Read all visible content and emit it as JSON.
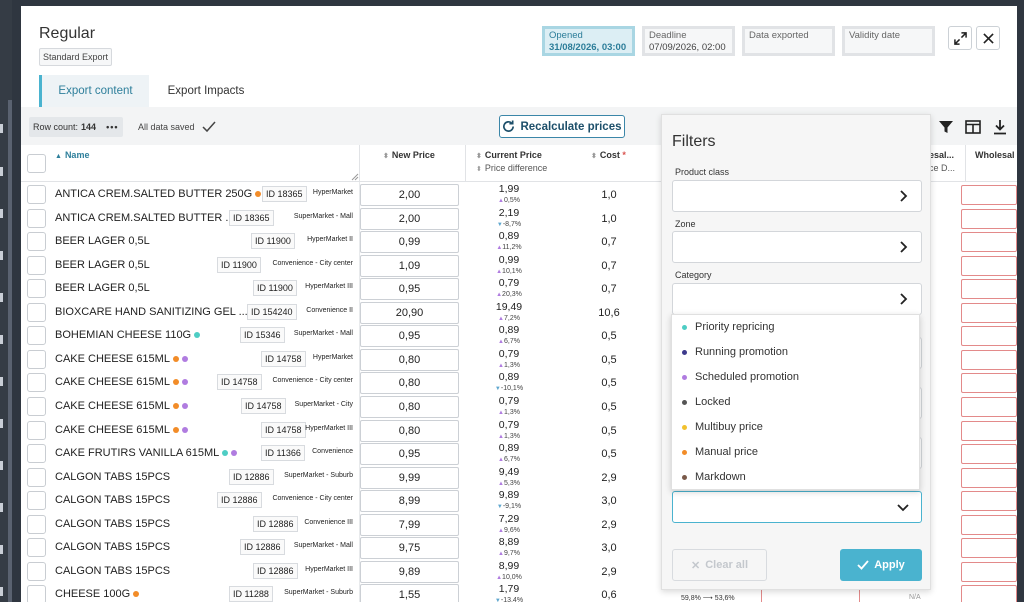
{
  "header": {
    "title": "Regular",
    "subtitle_badge": "Standard Export",
    "status": [
      {
        "label": "Opened",
        "value": "31/08/2026, 03:00",
        "active": true
      },
      {
        "label": "Deadline",
        "value": "07/09/2026, 02:00",
        "active": false
      },
      {
        "label": "Data exported",
        "value": "",
        "active": false
      },
      {
        "label": "Validity date",
        "value": "",
        "active": false
      }
    ],
    "icons": {
      "expand": "expand-icon",
      "close": "close-icon"
    }
  },
  "tabs": [
    {
      "label": "Export content",
      "active": true
    },
    {
      "label": "Export Impacts",
      "active": false
    }
  ],
  "toolbar": {
    "row_count_label": "Row count:",
    "row_count_value": "144",
    "more": "•••",
    "saved_text": "All data saved",
    "recalc_label": "Recalculate prices"
  },
  "columns": {
    "name": "Name",
    "new_price": "New Price",
    "current_price": "Current Price",
    "price_difference": "Price difference",
    "cost": "Cost",
    "cost_required": "*",
    "wholesale_cut": "esal...",
    "wholesale": "Wholesal",
    "price_d_cut": "ce D..."
  },
  "rows": [
    {
      "name": "ANTICA CREM.SALTED BUTTER 250G",
      "dots": [
        "orange"
      ],
      "id": "ID 18365",
      "zone": "HyperMarket",
      "new_price": "2,00",
      "current": "1,99",
      "diff": "0,5%",
      "dir": "up",
      "cost": "1,0"
    },
    {
      "name": "ANTICA CREM.SALTED BUTTER ...",
      "dots": [
        "orange"
      ],
      "id": "ID 18365",
      "zone": "SuperMarket - Mall",
      "new_price": "2,00",
      "current": "2,19",
      "diff": "-8,7%",
      "dir": "down",
      "cost": "1,0"
    },
    {
      "name": "BEER LAGER 0,5L",
      "dots": [],
      "id": "ID 11900",
      "zone": "HyperMarket II",
      "new_price": "0,99",
      "current": "0,89",
      "diff": "11,2%",
      "dir": "up",
      "cost": "0,7"
    },
    {
      "name": "BEER LAGER 0,5L",
      "dots": [],
      "id": "ID 11900",
      "zone": "Convenience - City center",
      "new_price": "1,09",
      "current": "0,99",
      "diff": "10,1%",
      "dir": "up",
      "cost": "0,7"
    },
    {
      "name": "BEER LAGER 0,5L",
      "dots": [],
      "id": "ID 11900",
      "zone": "HyperMarket III",
      "new_price": "0,95",
      "current": "0,79",
      "diff": "20,3%",
      "dir": "up",
      "cost": "0,7"
    },
    {
      "name": "BIOXCARE HAND SANITIZING GEL ...",
      "dots": [],
      "id": "ID 154240",
      "zone": "Convenience II",
      "new_price": "20,90",
      "current": "19,49",
      "diff": "7,2%",
      "dir": "up",
      "cost": "10,6"
    },
    {
      "name": "BOHEMIAN CHEESE 110G",
      "dots": [
        "teal"
      ],
      "id": "ID 15346",
      "zone": "SuperMarket - Mall",
      "new_price": "0,95",
      "current": "0,89",
      "diff": "6,7%",
      "dir": "up",
      "cost": "0,5"
    },
    {
      "name": "CAKE CHEESE 615ML",
      "dots": [
        "orange",
        "purple"
      ],
      "id": "ID 14758",
      "zone": "HyperMarket",
      "new_price": "0,80",
      "current": "0,79",
      "diff": "1,3%",
      "dir": "up",
      "cost": "0,5"
    },
    {
      "name": "CAKE CHEESE 615ML",
      "dots": [
        "orange",
        "purple"
      ],
      "id": "ID 14758",
      "zone": "Convenience - City center",
      "new_price": "0,80",
      "current": "0,89",
      "diff": "-10,1%",
      "dir": "down",
      "cost": "0,5"
    },
    {
      "name": "CAKE CHEESE 615ML",
      "dots": [
        "orange",
        "purple"
      ],
      "id": "ID 14758",
      "zone": "SuperMarket - City",
      "new_price": "0,80",
      "current": "0,79",
      "diff": "1,3%",
      "dir": "up",
      "cost": "0,5"
    },
    {
      "name": "CAKE CHEESE 615ML",
      "dots": [
        "orange",
        "purple"
      ],
      "id": "ID 14758",
      "zone": "HyperMarket III",
      "new_price": "0,80",
      "current": "0,79",
      "diff": "1,3%",
      "dir": "up",
      "cost": "0,5"
    },
    {
      "name": "CAKE FRUTIRS VANILLA 615ML",
      "dots": [
        "teal",
        "purple"
      ],
      "id": "ID 11366",
      "zone": "Convenience",
      "new_price": "0,95",
      "current": "0,89",
      "diff": "6,7%",
      "dir": "up",
      "cost": "0,5"
    },
    {
      "name": "CALGON TABS 15PCS",
      "dots": [],
      "id": "ID 12886",
      "zone": "SuperMarket - Suburb",
      "new_price": "9,99",
      "current": "9,49",
      "diff": "5,3%",
      "dir": "up",
      "cost": "2,9"
    },
    {
      "name": "CALGON TABS 15PCS",
      "dots": [],
      "id": "ID 12886",
      "zone": "Convenience - City center",
      "new_price": "8,99",
      "current": "9,89",
      "diff": "-9,1%",
      "dir": "down",
      "cost": "3,0"
    },
    {
      "name": "CALGON TABS 15PCS",
      "dots": [],
      "id": "ID 12886",
      "zone": "Convenience III",
      "new_price": "7,99",
      "current": "7,29",
      "diff": "9,6%",
      "dir": "up",
      "cost": "2,9"
    },
    {
      "name": "CALGON TABS 15PCS",
      "dots": [],
      "id": "ID 12886",
      "zone": "SuperMarket - Mall",
      "new_price": "9,75",
      "current": "8,89",
      "diff": "9,7%",
      "dir": "up",
      "cost": "3,0"
    },
    {
      "name": "CALGON TABS 15PCS",
      "dots": [],
      "id": "ID 12886",
      "zone": "HyperMarket III",
      "new_price": "9,89",
      "current": "8,99",
      "diff": "10,0%",
      "dir": "up",
      "cost": "2,9"
    },
    {
      "name": "CHEESE 100G",
      "dots": [
        "orange"
      ],
      "id": "ID 11288",
      "zone": "SuperMarket - Suburb",
      "new_price": "1,55",
      "current": "1,79",
      "diff": "-13,4%",
      "dir": "down",
      "cost": "0,6"
    }
  ],
  "filters": {
    "title": "Filters",
    "fields": [
      "Product class",
      "Zone",
      "Category"
    ],
    "options": [
      {
        "label": "Priority repricing",
        "color": "#4ecdc4"
      },
      {
        "label": "Running promotion",
        "color": "#3d3a8c"
      },
      {
        "label": "Scheduled promotion",
        "color": "#b07ce0"
      },
      {
        "label": "Locked",
        "color": "#555555"
      },
      {
        "label": "Multibuy price",
        "color": "#f2c12e"
      },
      {
        "label": "Manual price",
        "color": "#f28c28"
      },
      {
        "label": "Markdown",
        "color": "#7a5a4a"
      }
    ],
    "clear_label": "Clear all",
    "apply_label": "Apply",
    "peek_left": "59,8%",
    "peek_right": "53,6%",
    "peek_na": "N/A"
  },
  "colors": {
    "accent": "#4ab3cf",
    "brand_dark": "#1d4f6a",
    "panel_bg": "#f3f4f5"
  }
}
